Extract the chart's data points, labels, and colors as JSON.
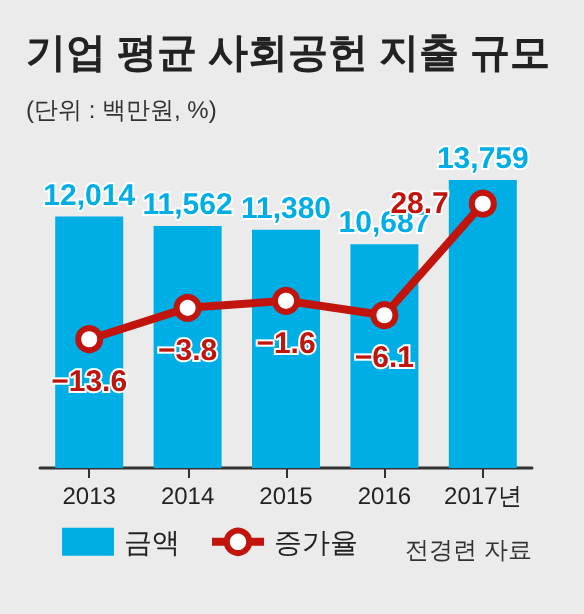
{
  "chart_data": {
    "type": "bar",
    "title": "기업 평균 사회공헌 지출 규모",
    "subtitle": "(단위 : 백만원, %)",
    "categories": [
      "2013",
      "2014",
      "2015",
      "2016",
      "2017년"
    ],
    "series": [
      {
        "name": "금액",
        "color": "#00aee6",
        "values": [
          12014,
          11562,
          11380,
          10687,
          13759
        ],
        "value_labels": [
          "12,014",
          "11,562",
          "11,380",
          "10,687",
          "13,759"
        ]
      },
      {
        "name": "증가율",
        "type": "line",
        "axis": "y2",
        "color": "#c0140c",
        "marker": "circle",
        "values": [
          -13.6,
          -3.8,
          -1.6,
          -6.1,
          28.7
        ],
        "value_labels": [
          "−13.6",
          "−3.8",
          "−1.6",
          "−6.1",
          "28.7"
        ]
      }
    ],
    "legend": "bottom left",
    "grid": false,
    "annotations": [
      "전경련 자료"
    ]
  }
}
